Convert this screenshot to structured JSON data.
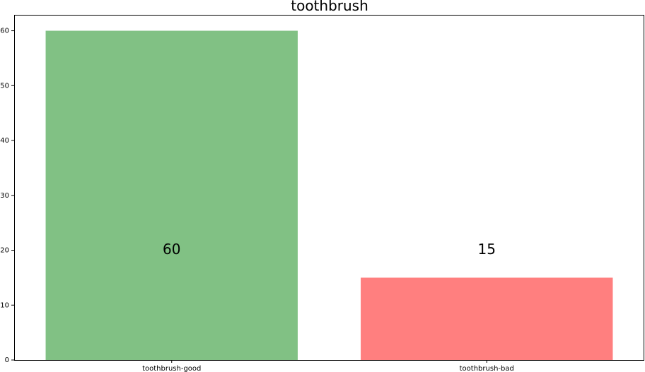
{
  "chart_data": {
    "type": "bar",
    "title": "toothbrush",
    "xlabel": "",
    "ylabel": "",
    "categories": [
      "toothbrush-good",
      "toothbrush-bad"
    ],
    "values": [
      60,
      15
    ],
    "colors": [
      "#81c184",
      "#ff7f7f"
    ],
    "data_labels": [
      "60",
      "15"
    ],
    "ylim": [
      0,
      62.9
    ],
    "yticks": [
      0,
      10,
      20,
      30,
      40,
      50,
      60
    ],
    "ytick_labels": [
      "0",
      "10",
      "20",
      "30",
      "40",
      "50",
      "60"
    ],
    "grid": false,
    "legend": "none"
  }
}
